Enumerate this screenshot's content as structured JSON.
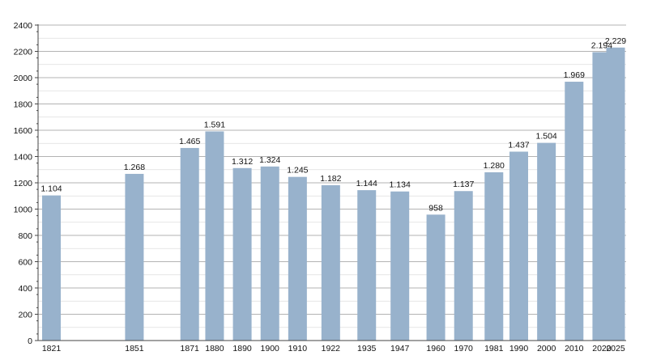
{
  "chart_data": {
    "type": "bar",
    "categories": [
      "1821",
      "1851",
      "1871",
      "1880",
      "1890",
      "1900",
      "1910",
      "1922",
      "1935",
      "1947",
      "1960",
      "1970",
      "1981",
      "1990",
      "2000",
      "2010",
      "2020",
      "2025"
    ],
    "values": [
      1104,
      1268,
      1465,
      1591,
      1312,
      1324,
      1245,
      1182,
      1144,
      1134,
      958,
      1137,
      1280,
      1437,
      1504,
      1969,
      2194,
      2229
    ],
    "value_labels": [
      "1.104",
      "1.268",
      "1.465",
      "1.591",
      "1.312",
      "1.324",
      "1.245",
      "1.182",
      "1.144",
      "1.134",
      "958",
      "1.137",
      "1.280",
      "1.437",
      "1.504",
      "1.969",
      "2.194",
      "2.229"
    ],
    "y_ticks": [
      "0",
      "200",
      "400",
      "600",
      "800",
      "1000",
      "1200",
      "1400",
      "1600",
      "1800",
      "2000",
      "2200",
      "2400"
    ],
    "ylim": [
      0,
      2400
    ],
    "grid": true,
    "bar_color": "#98b2cc",
    "title": "",
    "xlabel": "",
    "ylabel": ""
  }
}
